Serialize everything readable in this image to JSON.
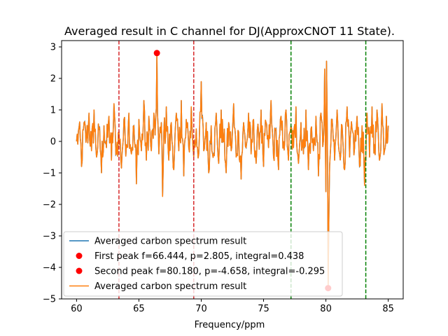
{
  "chart_data": {
    "type": "line",
    "title": "Averaged result in C channel for DJ(ApproxCNOT 11 State).",
    "xlabel": "Frequency/ppm",
    "ylabel": "",
    "xlim": [
      58.8,
      86.2
    ],
    "ylim": [
      -5.0,
      3.2
    ],
    "xticks": [
      60,
      65,
      70,
      75,
      80,
      85
    ],
    "yticks": [
      -5,
      -4,
      -3,
      -2,
      -1,
      0,
      1,
      2,
      3
    ],
    "grid": false,
    "legend_position": "lower-left",
    "colors": {
      "blue_series": "#1f77b4",
      "orange_series": "#ff7f0e",
      "peak_marker": "#ff0000",
      "red_lines": "#d62728",
      "green_lines": "#008000"
    },
    "vlines": [
      {
        "x": 63.4,
        "color": "red"
      },
      {
        "x": 69.4,
        "color": "red"
      },
      {
        "x": 77.2,
        "color": "green"
      },
      {
        "x": 83.2,
        "color": "green"
      }
    ],
    "legend": [
      {
        "label": "Averaged carbon spectrum result",
        "kind": "line",
        "color": "#1f77b4"
      },
      {
        "label": "First peak f=66.444, p=2.805, integral=0.438",
        "kind": "marker",
        "color": "#ff0000"
      },
      {
        "label": "Second peak f=80.180, p=-4.658, integral=-0.295",
        "kind": "marker",
        "color": "#ff0000"
      },
      {
        "label": "Averaged carbon spectrum result",
        "kind": "line",
        "color": "#ff7f0e"
      }
    ],
    "peaks": [
      {
        "x": 66.444,
        "y": 2.805
      },
      {
        "x": 80.18,
        "y": -4.658
      }
    ],
    "series": [
      {
        "name": "Averaged carbon spectrum result",
        "color": "#1f77b4",
        "x_start": 60.0,
        "x_end": 85.0,
        "values": []
      },
      {
        "name": "Averaged carbon spectrum result",
        "color": "#ff7f0e",
        "x_start": 60.0,
        "x_end": 85.0,
        "anchors": [
          [
            60.0,
            0.0
          ],
          [
            60.2,
            0.45
          ],
          [
            60.4,
            -0.8
          ],
          [
            60.6,
            0.6
          ],
          [
            60.8,
            0.15
          ],
          [
            61.0,
            0.9
          ],
          [
            61.2,
            -0.3
          ],
          [
            61.4,
            1.0
          ],
          [
            61.6,
            -0.5
          ],
          [
            61.8,
            0.4
          ],
          [
            62.0,
            -1.0
          ],
          [
            62.2,
            0.5
          ],
          [
            62.4,
            -0.2
          ],
          [
            62.6,
            0.8
          ],
          [
            62.8,
            -0.6
          ],
          [
            63.0,
            1.2
          ],
          [
            63.2,
            -0.4
          ],
          [
            63.4,
            0.3
          ],
          [
            63.6,
            -0.85
          ],
          [
            63.8,
            0.7
          ],
          [
            64.0,
            -0.1
          ],
          [
            64.2,
            0.9
          ],
          [
            64.4,
            -0.4
          ],
          [
            64.6,
            0.5
          ],
          [
            64.8,
            -1.35
          ],
          [
            65.0,
            0.7
          ],
          [
            65.2,
            -0.3
          ],
          [
            65.4,
            1.3
          ],
          [
            65.6,
            -0.6
          ],
          [
            65.8,
            0.8
          ],
          [
            66.0,
            -0.3
          ],
          [
            66.2,
            0.9
          ],
          [
            66.3,
            0.2
          ],
          [
            66.444,
            2.805
          ],
          [
            66.6,
            -0.4
          ],
          [
            66.8,
            0.6
          ],
          [
            66.9,
            -1.75
          ],
          [
            67.0,
            0.3
          ],
          [
            67.2,
            1.1
          ],
          [
            67.4,
            -0.6
          ],
          [
            67.6,
            0.6
          ],
          [
            67.8,
            -0.9
          ],
          [
            68.0,
            0.9
          ],
          [
            68.2,
            -0.3
          ],
          [
            68.4,
            1.3
          ],
          [
            68.6,
            -1.1
          ],
          [
            68.8,
            0.7
          ],
          [
            69.0,
            -0.2
          ],
          [
            69.2,
            1.1
          ],
          [
            69.4,
            -0.5
          ],
          [
            69.6,
            0.4
          ],
          [
            69.8,
            -0.4
          ],
          [
            70.0,
            1.9
          ],
          [
            70.2,
            -0.3
          ],
          [
            70.4,
            0.6
          ],
          [
            70.6,
            -1.0
          ],
          [
            70.8,
            0.5
          ],
          [
            71.0,
            -0.4
          ],
          [
            71.2,
            0.9
          ],
          [
            71.4,
            -0.7
          ],
          [
            71.6,
            1.0
          ],
          [
            71.8,
            0.0
          ],
          [
            72.0,
            -1.0
          ],
          [
            72.2,
            0.6
          ],
          [
            72.4,
            -0.3
          ],
          [
            72.6,
            1.2
          ],
          [
            72.8,
            -0.5
          ],
          [
            73.0,
            0.3
          ],
          [
            73.2,
            -1.2
          ],
          [
            73.4,
            0.6
          ],
          [
            73.6,
            -0.2
          ],
          [
            73.8,
            0.9
          ],
          [
            74.0,
            -0.4
          ],
          [
            74.2,
            0.7
          ],
          [
            74.4,
            -0.7
          ],
          [
            74.6,
            0.3
          ],
          [
            74.8,
            1.0
          ],
          [
            75.0,
            -0.8
          ],
          [
            75.2,
            0.6
          ],
          [
            75.4,
            -0.2
          ],
          [
            75.6,
            1.3
          ],
          [
            75.8,
            -0.5
          ],
          [
            76.0,
            0.4
          ],
          [
            76.2,
            -0.9
          ],
          [
            76.4,
            0.8
          ],
          [
            76.6,
            0.0
          ],
          [
            76.8,
            1.0
          ],
          [
            77.0,
            -0.6
          ],
          [
            77.2,
            0.5
          ],
          [
            77.4,
            -0.2
          ],
          [
            77.6,
            1.1
          ],
          [
            77.8,
            -0.7
          ],
          [
            78.0,
            0.6
          ],
          [
            78.2,
            -0.4
          ],
          [
            78.4,
            1.0
          ],
          [
            78.6,
            -0.9
          ],
          [
            78.8,
            0.4
          ],
          [
            79.0,
            -0.3
          ],
          [
            79.2,
            0.8
          ],
          [
            79.4,
            -1.1
          ],
          [
            79.6,
            0.9
          ],
          [
            79.8,
            0.0
          ],
          [
            79.9,
            2.3
          ],
          [
            80.0,
            -1.6
          ],
          [
            80.05,
            2.55
          ],
          [
            80.1,
            0.8
          ],
          [
            80.18,
            -4.658
          ],
          [
            80.25,
            -2.0
          ],
          [
            80.35,
            -0.4
          ],
          [
            80.5,
            0.7
          ],
          [
            80.7,
            -0.6
          ],
          [
            80.9,
            1.0
          ],
          [
            81.1,
            -0.4
          ],
          [
            81.3,
            0.5
          ],
          [
            81.5,
            -0.9
          ],
          [
            81.7,
            1.1
          ],
          [
            81.9,
            -0.5
          ],
          [
            82.1,
            0.4
          ],
          [
            82.3,
            -0.2
          ],
          [
            82.5,
            0.8
          ],
          [
            82.7,
            -0.8
          ],
          [
            82.9,
            0.5
          ],
          [
            83.1,
            -1.4
          ],
          [
            83.3,
            0.9
          ],
          [
            83.5,
            -0.5
          ],
          [
            83.7,
            1.1
          ],
          [
            83.9,
            -0.1
          ],
          [
            84.1,
            1.0
          ],
          [
            84.3,
            -0.6
          ],
          [
            84.5,
            1.2
          ],
          [
            84.7,
            -0.3
          ],
          [
            84.85,
            0.8
          ],
          [
            85.0,
            0.5
          ]
        ]
      }
    ]
  }
}
